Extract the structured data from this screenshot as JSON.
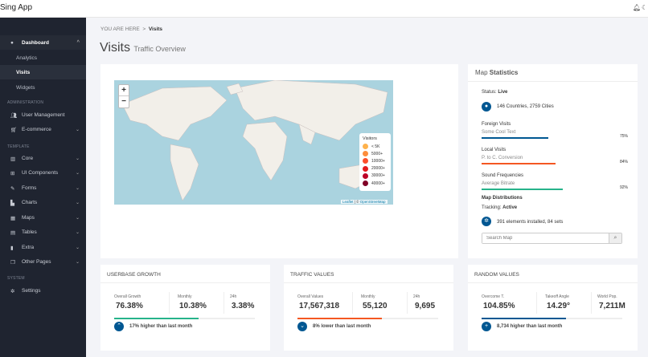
{
  "app": {
    "title": "Sing App",
    "icons": [
      "bell-icon",
      "moon-icon"
    ]
  },
  "sidebar": {
    "dashboard": "Dashboard",
    "subs": [
      "Analytics",
      "Visits",
      "Widgets"
    ],
    "headers": [
      "ADMINISTRATION",
      "TEMPLATE",
      "SYSTEM"
    ],
    "items": [
      {
        "label": "User Management",
        "icon": "users-icon"
      },
      {
        "label": "E-commerce",
        "icon": "cart-icon"
      },
      {
        "label": "Core",
        "icon": "columns-icon"
      },
      {
        "label": "UI Components",
        "icon": "grid-icon"
      },
      {
        "label": "Forms",
        "icon": "edit-icon"
      },
      {
        "label": "Charts",
        "icon": "chart-icon"
      },
      {
        "label": "Maps",
        "icon": "map-icon"
      },
      {
        "label": "Tables",
        "icon": "table-icon"
      },
      {
        "label": "Extra",
        "icon": "file-icon"
      },
      {
        "label": "Other Pages",
        "icon": "pages-icon"
      },
      {
        "label": "Settings",
        "icon": "gear-icon"
      }
    ]
  },
  "breadcrumb": {
    "prefix": "YOU ARE HERE",
    "sep": ">",
    "current": "Visits"
  },
  "page": {
    "title": "Visits",
    "subtitle": "Traffic Overview"
  },
  "map": {
    "zoom_in": "+",
    "zoom_out": "−",
    "legend_title": "Visitors",
    "legend": [
      {
        "label": "< 5K",
        "color": "#feb24c"
      },
      {
        "label": "5000+",
        "color": "#fd8d3c"
      },
      {
        "label": "10000+",
        "color": "#fc4e2a"
      },
      {
        "label": "20000+",
        "color": "#e31a1c"
      },
      {
        "label": "30000+",
        "color": "#bd0026"
      },
      {
        "label": "40000+",
        "color": "#800026"
      }
    ],
    "attr_leaflet": "Leaflet",
    "attr_sep": " | © ",
    "attr_osm": "OpenStreetMap"
  },
  "stats": {
    "title_a": "Map",
    "title_b": "Statistics",
    "status_label": "Status:",
    "status_value": "Live",
    "countries": "146 Countries, 2759 Cities",
    "bars": [
      {
        "title": "Foreign Visits",
        "sub": "Some Cool Text",
        "pct": "75%",
        "value": 75,
        "color": "#005792"
      },
      {
        "title": "Local Visits",
        "sub": "P. to C. Conversion",
        "pct": "84%",
        "value": 84,
        "color": "#f45722"
      },
      {
        "title": "Sound Frequencies",
        "sub": "Average Bitrate",
        "pct": "92%",
        "value": 92,
        "color": "#26b38a"
      }
    ],
    "dist": "Map Distributions",
    "tracking_label": "Tracking:",
    "tracking_value": "Active",
    "installed": "391 elements installed, 84 sets",
    "search_placeholder": "Search Map"
  },
  "cards": [
    {
      "title": "USERBASE GROWTH",
      "labels": [
        "Overall Growth",
        "Monthly",
        "24h"
      ],
      "values": [
        "76.38%",
        "10.38%",
        "3.38%"
      ],
      "progress": 60,
      "color": "#26b38a",
      "icon": "chevron-up-icon",
      "glyph": "⌃",
      "note": "17% higher than last month"
    },
    {
      "title": "TRAFFIC VALUES",
      "labels": [
        "Overall Values",
        "Monthly",
        "24h"
      ],
      "values": [
        "17,567,318",
        "55,120",
        "9,695"
      ],
      "progress": 60,
      "color": "#f45722",
      "icon": "chevron-down-icon",
      "glyph": "⌄",
      "note": "8% lower than last month"
    },
    {
      "title": "RANDOM VALUES",
      "labels": [
        "Overcome T.",
        "Takeoff Angle",
        "World Pop."
      ],
      "values": [
        "104.85%",
        "14.29°",
        "7,211M"
      ],
      "progress": 60,
      "color": "#005792",
      "icon": "plus-icon",
      "glyph": "+",
      "note": "8,734 higher than last month"
    }
  ]
}
